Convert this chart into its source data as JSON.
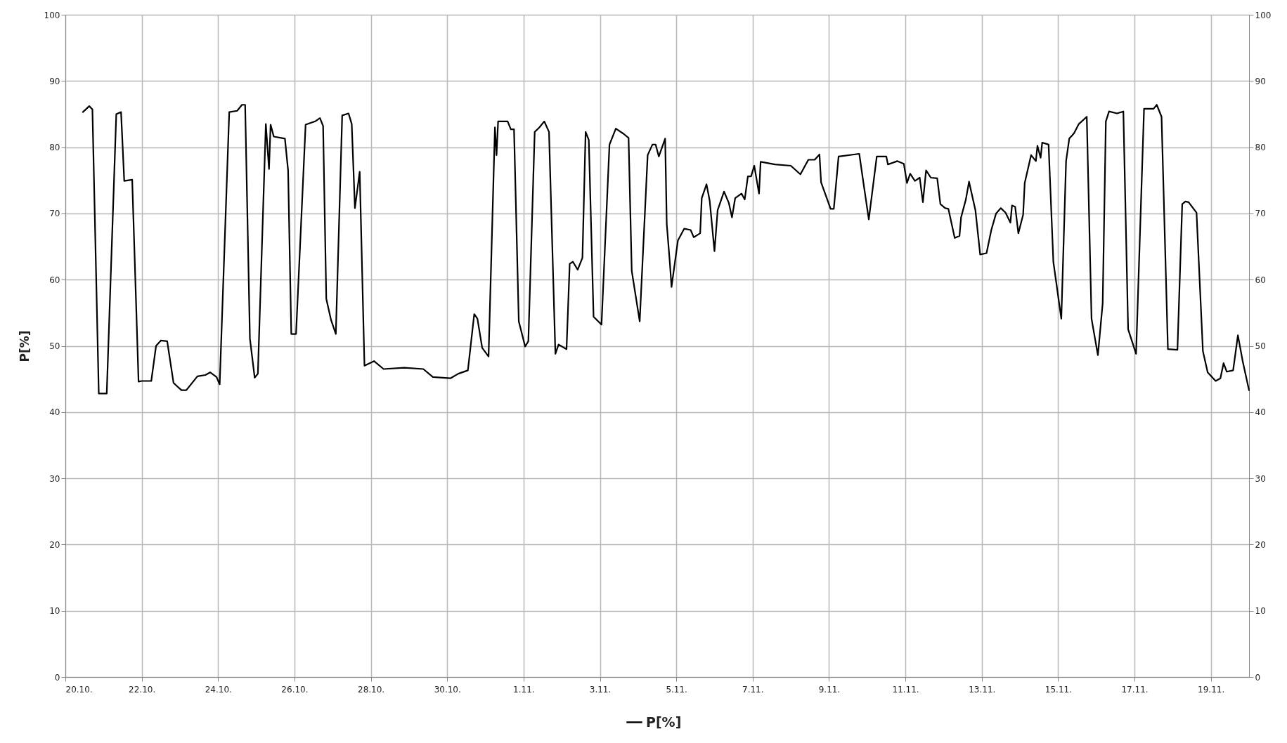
{
  "chart_data": {
    "type": "line",
    "ylabel": "P[%]",
    "grid": true,
    "legend": "bottom",
    "marker": "none",
    "line_style": "solid",
    "x": [
      "--10-20T11:00",
      "--10-20T15:00",
      "--10-20T17:00",
      "--10-20T21:00",
      "--10-21T02:00",
      "--10-21T08:00",
      "--10-21T11:00",
      "--10-21T13:00",
      "--10-21T18:00",
      "--10-21T22:00",
      "--10-22T00:00",
      "--10-22T06:00",
      "--10-22T09:00",
      "--10-22T12:00",
      "--10-22T16:00",
      "--10-22T20:00",
      "--10-23T01:00",
      "--10-23T04:00",
      "--10-23T11:00",
      "--10-23T16:00",
      "--10-23T19:00",
      "--10-23T23:00",
      "--10-24T01:00",
      "--10-24T07:00",
      "--10-24T12:00",
      "--10-24T15:00",
      "--10-24T17:00",
      "--10-24T20:00",
      "--10-24T23:00",
      "--10-25T01:00",
      "--10-25T06:00",
      "--10-25T08:00",
      "--10-25T09:00",
      "--10-25T11:00",
      "--10-25T18:00",
      "--10-25T20:00",
      "--10-25T22:00",
      "--10-26T01:00",
      "--10-26T07:00",
      "--10-26T13:00",
      "--10-26T16:00",
      "--10-26T18:00",
      "--10-26T20:00",
      "--10-26T23:00",
      "--10-27T02:00",
      "--10-27T06:00",
      "--10-27T10:00",
      "--10-27T12:00",
      "--10-27T14:00",
      "--10-27T17:00",
      "--10-27T20:00",
      "--10-28T02:00",
      "--10-28T08:00",
      "--10-28T21:00",
      "--10-29T09:00",
      "--10-29T15:00",
      "--10-30T02:00",
      "--10-30T07:00",
      "--10-30T13:00",
      "--10-30T17:00",
      "--10-30T19:00",
      "--10-30T22:00",
      "--10-31T02:00",
      "--10-31T06:00",
      "--10-31T07:00",
      "--10-31T08:00",
      "--10-31T14:00",
      "--10-31T16:00",
      "--10-31T18:00",
      "--10-31T21:00",
      "--11-01T01:00",
      "--11-01T03:00",
      "--11-01T07:00",
      "--11-01T10:00",
      "--11-01T13:00",
      "--11-01T16:00",
      "--11-01T20:00",
      "--11-01T22:00",
      "--11-02T03:00",
      "--11-02T05:00",
      "--11-02T07:00",
      "--11-02T10:00",
      "--11-02T13:00",
      "--11-02T15:00",
      "--11-02T17:00",
      "--11-02T20:00",
      "--11-03T01:00",
      "--11-03T06:00",
      "--11-03T10:00",
      "--11-03T15:00",
      "--11-03T18:00",
      "--11-03T20:00",
      "--11-04T01:00",
      "--11-04T06:00",
      "--11-04T09:00",
      "--11-04T11:00",
      "--11-04T13:00",
      "--11-04T17:00",
      "--11-04T18:00",
      "--11-04T20:00",
      "--11-04T21:00",
      "--11-05T01:00",
      "--11-05T05:00",
      "--11-05T09:00",
      "--11-05T11:00",
      "--11-05T15:00",
      "--11-05T16:00",
      "--11-05T19:00",
      "--11-05T21:00",
      "--11-06T00:00",
      "--11-06T02:00",
      "--11-06T06:00",
      "--11-06T09:00",
      "--11-06T11:00",
      "--11-06T13:00",
      "--11-06T17:00",
      "--11-06T19:00",
      "--11-06T21:00",
      "--11-06T23:00",
      "--11-07T01:00",
      "--11-07T04:00",
      "--11-07T05:00",
      "--11-07T14:00",
      "--11-08T00:00",
      "--11-08T06:00",
      "--11-08T11:00",
      "--11-08T15:00",
      "--11-08T18:00",
      "--11-08T19:00",
      "--11-09T01:00",
      "--11-09T03:00",
      "--11-09T06:00",
      "--11-09T19:00",
      "--11-09T22:00",
      "--11-10T01:00",
      "--11-10T06:00",
      "--11-10T12:00",
      "--11-10T13:00",
      "--11-10T19:00",
      "--11-10T23:00",
      "--11-11T01:00",
      "--11-11T03:00",
      "--11-11T06:00",
      "--11-11T09:00",
      "--11-11T11:00",
      "--11-11T13:00",
      "--11-11T16:00",
      "--11-11T20:00",
      "--11-11T22:00",
      "--11-12T01:00",
      "--11-12T03:00",
      "--11-12T07:00",
      "--11-12T10:00",
      "--11-12T11:00",
      "--11-12T14:00",
      "--11-12T16:00",
      "--11-12T20:00",
      "--11-12T23:00",
      "--11-13T03:00",
      "--11-13T06:00",
      "--11-13T09:00",
      "--11-13T12:00",
      "--11-13T15:00",
      "--11-13T18:00",
      "--11-13T19:00",
      "--11-13T21:00",
      "--11-13T23:00",
      "--11-14T02:00",
      "--11-14T03:00",
      "--11-14T07:00",
      "--11-14T10:00",
      "--11-14T11:00",
      "--11-14T13:00",
      "--11-14T14:00",
      "--11-14T18:00",
      "--11-14T21:00",
      "--11-15T02:00",
      "--11-15T05:00",
      "--11-15T07:00",
      "--11-15T10:00",
      "--11-15T13:00",
      "--11-15T18:00",
      "--11-15T21:00",
      "--11-16T01:00",
      "--11-16T04:00",
      "--11-16T06:00",
      "--11-16T08:00",
      "--11-16T13:00",
      "--11-16T17:00",
      "--11-16T20:00",
      "--11-17T01:00",
      "--11-17T06:00",
      "--11-17T12:00",
      "--11-17T14:00",
      "--11-17T17:00",
      "--11-17T21:00",
      "--11-18T03:00",
      "--11-18T06:00",
      "--11-18T08:00",
      "--11-18T10:00",
      "--11-18T15:00",
      "--11-18T19:00",
      "--11-18T22:00",
      "--11-19T03:00",
      "--11-19T06:00",
      "--11-19T08:00",
      "--11-19T10:00",
      "--11-19T14:00",
      "--11-19T17:00",
      "--11-19T20:00",
      "--11-20T00:00"
    ],
    "series": [
      {
        "name": "P[%]",
        "color": "#000000",
        "values": [
          85.3,
          86.2,
          85.7,
          42.8,
          42.8,
          85.0,
          85.3,
          74.9,
          75.1,
          44.6,
          44.7,
          44.7,
          50.0,
          50.8,
          50.7,
          44.4,
          43.3,
          43.3,
          45.4,
          45.6,
          46.0,
          45.3,
          44.2,
          85.3,
          85.5,
          86.4,
          86.4,
          51.1,
          45.2,
          45.8,
          83.5,
          76.7,
          83.4,
          81.6,
          81.3,
          76.5,
          51.8,
          51.8,
          83.4,
          83.9,
          84.4,
          83.2,
          57.1,
          53.9,
          51.8,
          84.8,
          85.1,
          83.5,
          70.8,
          76.3,
          47.0,
          47.7,
          46.5,
          46.7,
          46.5,
          45.3,
          45.1,
          45.8,
          46.3,
          54.8,
          54.1,
          49.7,
          48.4,
          83.0,
          78.8,
          83.9,
          83.9,
          82.7,
          82.7,
          53.7,
          49.9,
          50.7,
          82.3,
          83.0,
          83.9,
          82.3,
          48.8,
          50.2,
          49.5,
          62.4,
          62.7,
          61.5,
          63.3,
          82.3,
          81.1,
          54.4,
          53.2,
          80.4,
          82.8,
          82.0,
          81.4,
          61.3,
          53.7,
          78.8,
          80.4,
          80.4,
          78.6,
          81.3,
          68.4,
          62.4,
          58.9,
          65.9,
          67.7,
          67.5,
          66.4,
          67.0,
          72.3,
          74.4,
          71.9,
          64.3,
          70.5,
          73.3,
          71.6,
          69.4,
          72.3,
          73.0,
          72.1,
          75.6,
          75.6,
          77.2,
          73.0,
          77.8,
          77.4,
          77.2,
          75.9,
          78.1,
          78.1,
          78.9,
          74.7,
          70.7,
          70.7,
          78.6,
          79.0,
          74.0,
          69.1,
          78.6,
          78.6,
          77.4,
          77.9,
          77.5,
          74.6,
          76.0,
          74.9,
          75.4,
          71.7,
          76.5,
          75.4,
          75.3,
          71.4,
          70.8,
          70.7,
          66.3,
          66.6,
          69.4,
          72.1,
          74.8,
          70.5,
          63.8,
          64.0,
          67.5,
          70.0,
          70.8,
          70.1,
          68.6,
          71.2,
          71.0,
          67.0,
          69.8,
          74.6,
          78.8,
          77.9,
          80.2,
          78.4,
          80.7,
          80.4,
          62.7,
          54.1,
          77.9,
          81.3,
          82.1,
          83.5,
          84.6,
          54.1,
          48.6,
          56.4,
          83.9,
          85.4,
          85.1,
          85.4,
          52.5,
          48.8,
          85.8,
          85.8,
          86.4,
          84.6,
          49.5,
          49.4,
          71.4,
          71.8,
          71.7,
          70.1,
          49.2,
          46.0,
          44.7,
          45.1,
          47.4,
          46.1,
          46.3,
          51.6,
          47.7,
          43.3
        ]
      }
    ],
    "xlim": [
      "--10-20",
      "--11-20"
    ],
    "xticks": [
      {
        "value": "--10-20",
        "label": "20.10."
      },
      {
        "value": "--10-22",
        "label": "22.10."
      },
      {
        "value": "--10-24",
        "label": "24.10."
      },
      {
        "value": "--10-26",
        "label": "26.10."
      },
      {
        "value": "--10-28",
        "label": "28.10."
      },
      {
        "value": "--10-30",
        "label": "30.10."
      },
      {
        "value": "--11-01",
        "label": "1.11."
      },
      {
        "value": "--11-03",
        "label": "3.11."
      },
      {
        "value": "--11-05",
        "label": "5.11."
      },
      {
        "value": "--11-07",
        "label": "7.11."
      },
      {
        "value": "--11-09",
        "label": "9.11."
      },
      {
        "value": "--11-11",
        "label": "11.11."
      },
      {
        "value": "--11-13",
        "label": "13.11."
      },
      {
        "value": "--11-15",
        "label": "15.11."
      },
      {
        "value": "--11-17",
        "label": "17.11."
      },
      {
        "value": "--11-19",
        "label": "19.11."
      }
    ],
    "ylim": [
      0,
      100
    ],
    "yticks": [
      0,
      10,
      20,
      30,
      40,
      50,
      60,
      70,
      80,
      90,
      100
    ],
    "y2lim": [
      0,
      100
    ],
    "y2ticks": [
      0,
      10,
      20,
      30,
      40,
      50,
      60,
      70,
      80,
      90,
      100
    ]
  }
}
